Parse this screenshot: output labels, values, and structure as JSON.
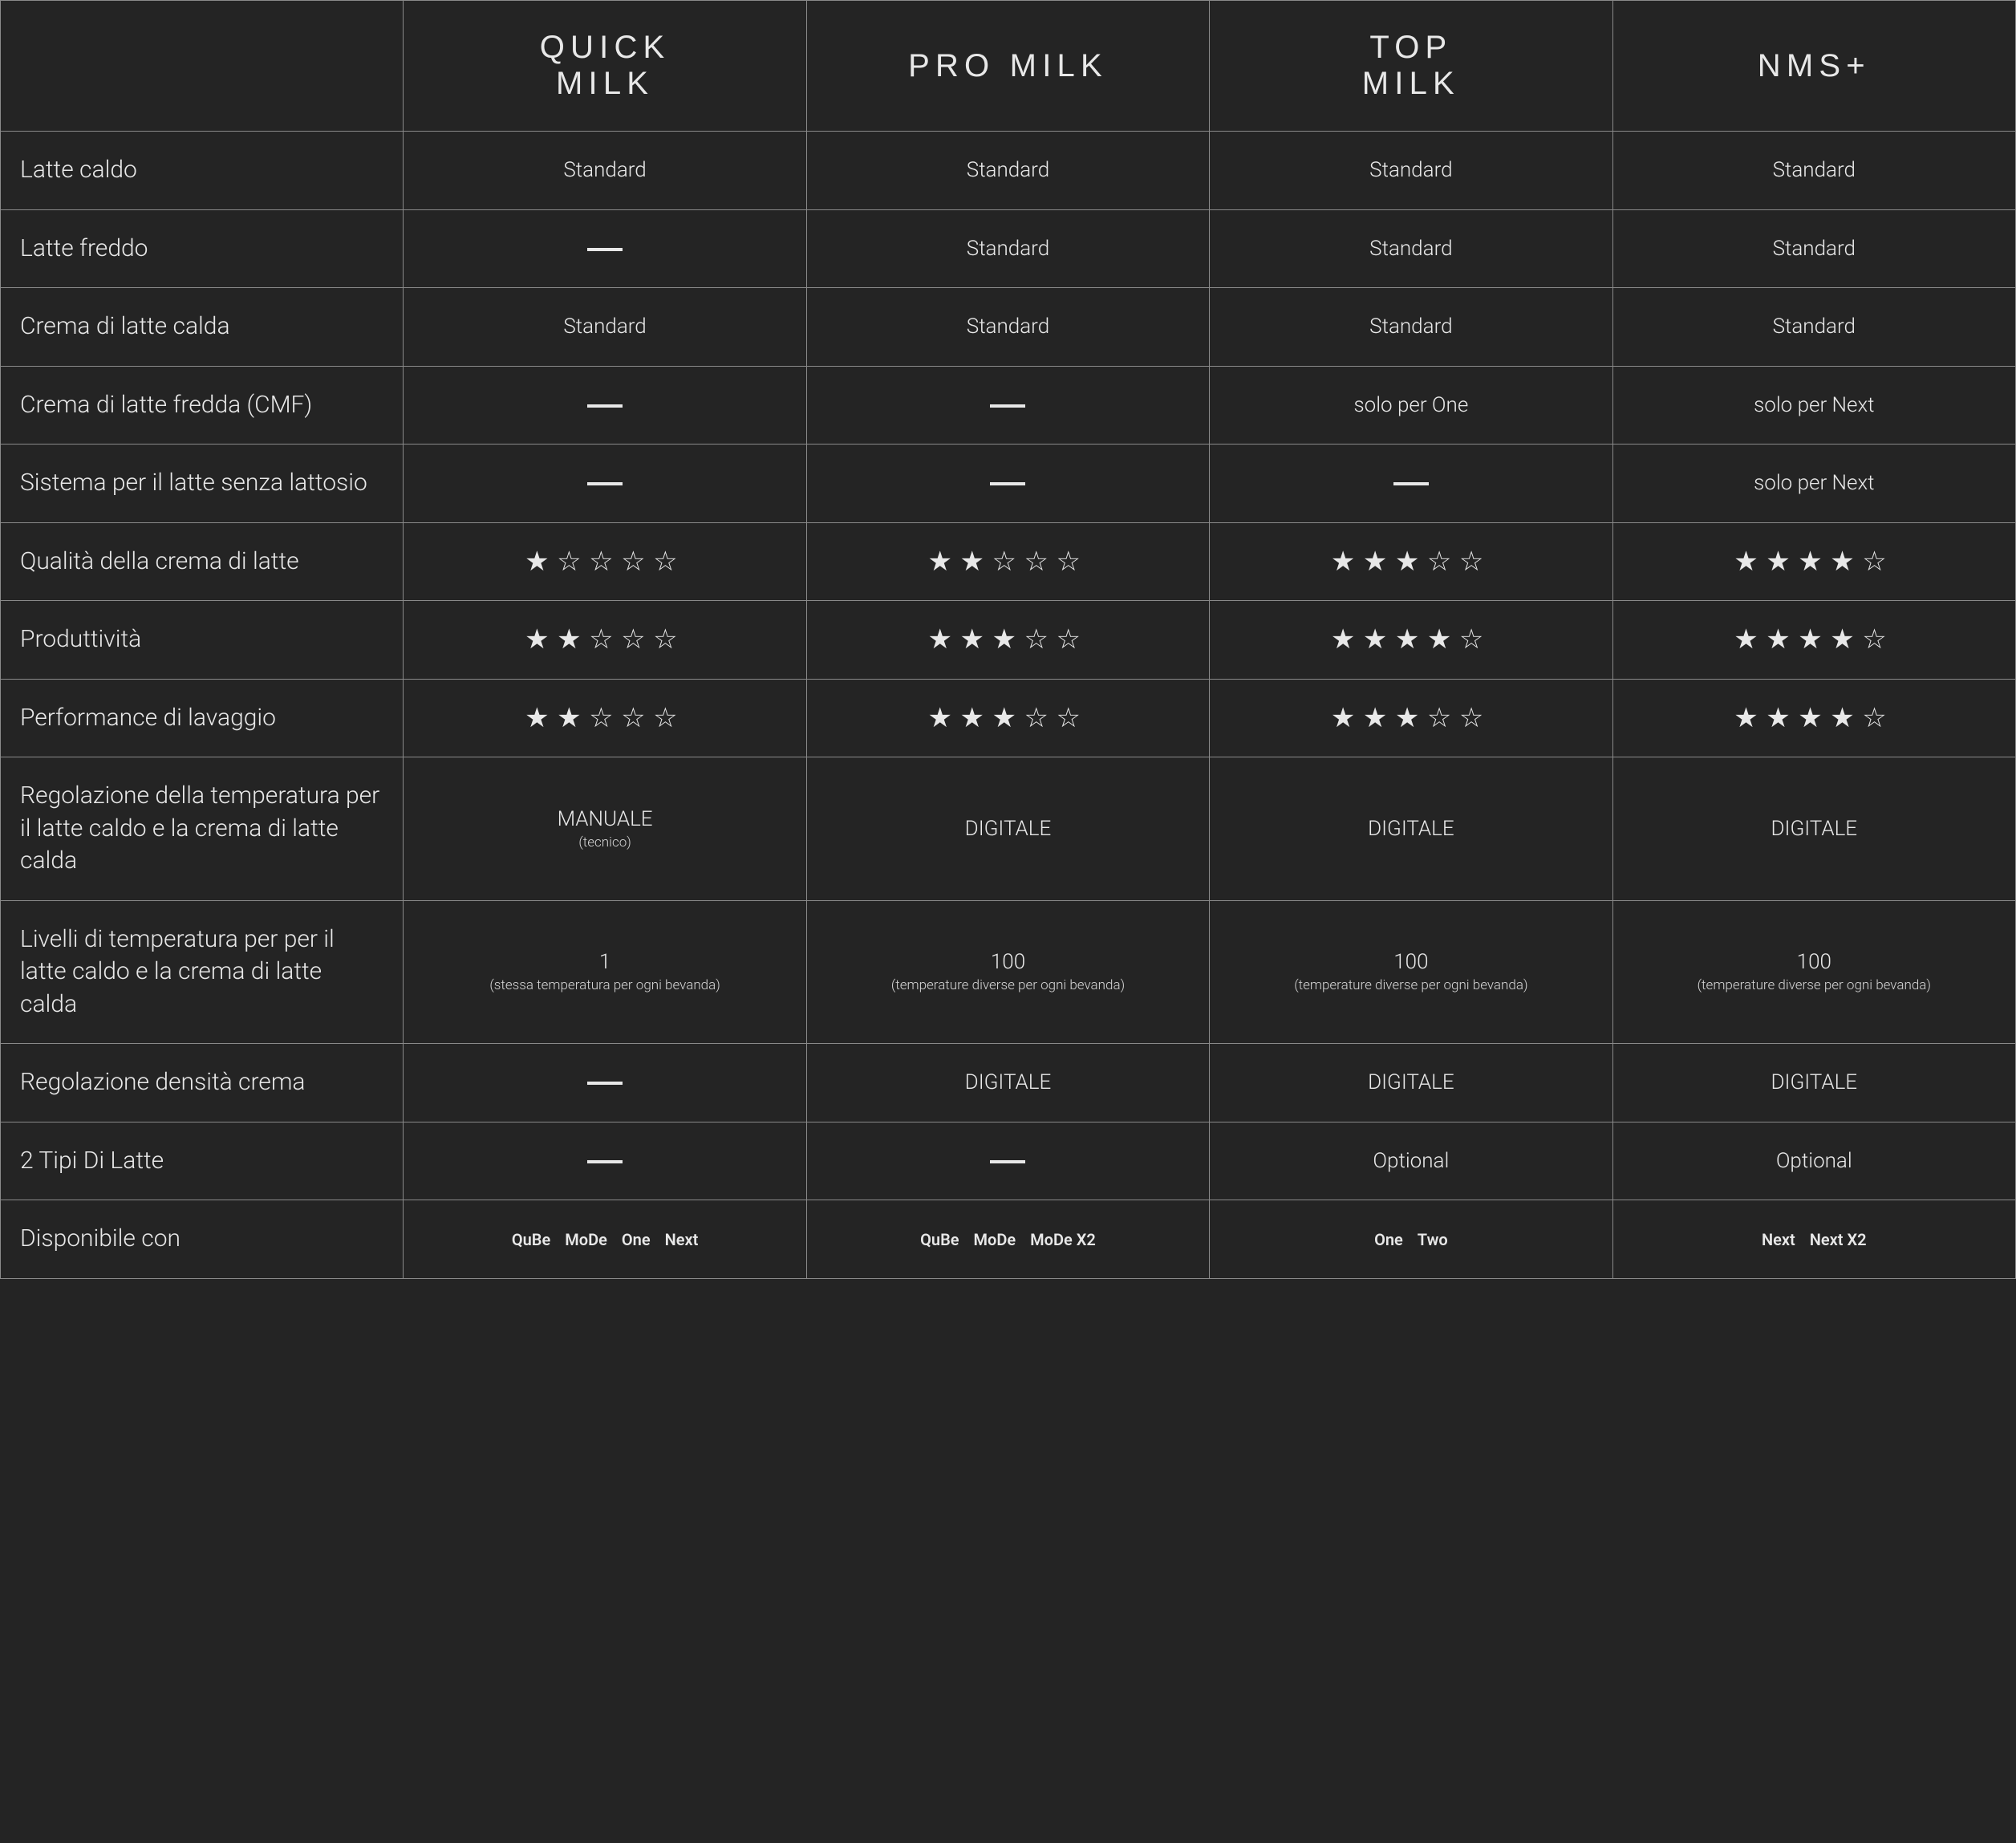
{
  "colors": {
    "background": "#242424",
    "text": "#e8e8e8",
    "border": "#8a8a8a"
  },
  "columns": [
    {
      "id": "quick",
      "line1": "QUICK",
      "line2": "MILK"
    },
    {
      "id": "pro",
      "line1": "PRO MILK",
      "line2": ""
    },
    {
      "id": "top",
      "line1": "TOP",
      "line2": "MILK"
    },
    {
      "id": "nms",
      "line1": "NMS+",
      "line2": ""
    }
  ],
  "rows": [
    {
      "label": "Latte caldo",
      "cells": [
        {
          "type": "text",
          "value": "Standard"
        },
        {
          "type": "text",
          "value": "Standard"
        },
        {
          "type": "text",
          "value": "Standard"
        },
        {
          "type": "text",
          "value": "Standard"
        }
      ]
    },
    {
      "label": "Latte freddo",
      "cells": [
        {
          "type": "dash"
        },
        {
          "type": "text",
          "value": "Standard"
        },
        {
          "type": "text",
          "value": "Standard"
        },
        {
          "type": "text",
          "value": "Standard"
        }
      ]
    },
    {
      "label": "Crema di latte calda",
      "cells": [
        {
          "type": "text",
          "value": "Standard"
        },
        {
          "type": "text",
          "value": "Standard"
        },
        {
          "type": "text",
          "value": "Standard"
        },
        {
          "type": "text",
          "value": "Standard"
        }
      ]
    },
    {
      "label": "Crema di latte fredda (CMF)",
      "cells": [
        {
          "type": "dash"
        },
        {
          "type": "dash"
        },
        {
          "type": "text",
          "value": "solo per One"
        },
        {
          "type": "text",
          "value": "solo per Next"
        }
      ]
    },
    {
      "label": "Sistema per il latte senza lattosio",
      "cells": [
        {
          "type": "dash"
        },
        {
          "type": "dash"
        },
        {
          "type": "dash"
        },
        {
          "type": "text",
          "value": "solo per Next"
        }
      ]
    },
    {
      "label": "Qualità della crema di latte",
      "cells": [
        {
          "type": "stars",
          "value": 1,
          "max": 5
        },
        {
          "type": "stars",
          "value": 2,
          "max": 5
        },
        {
          "type": "stars",
          "value": 3,
          "max": 5
        },
        {
          "type": "stars",
          "value": 4,
          "max": 5
        }
      ]
    },
    {
      "label": "Produttività",
      "cells": [
        {
          "type": "stars",
          "value": 2,
          "max": 5
        },
        {
          "type": "stars",
          "value": 3,
          "max": 5
        },
        {
          "type": "stars",
          "value": 4,
          "max": 5
        },
        {
          "type": "stars",
          "value": 4,
          "max": 5
        }
      ]
    },
    {
      "label": "Performance di lavaggio",
      "cells": [
        {
          "type": "stars",
          "value": 2,
          "max": 5
        },
        {
          "type": "stars",
          "value": 3,
          "max": 5
        },
        {
          "type": "stars",
          "value": 3,
          "max": 5
        },
        {
          "type": "stars",
          "value": 4,
          "max": 5
        }
      ]
    },
    {
      "label": "Regolazione della temperatura per il latte caldo e la crema di latte calda",
      "cells": [
        {
          "type": "text-sub",
          "value": "MANUALE",
          "sub": "(tecnico)"
        },
        {
          "type": "text",
          "value": "DIGITALE"
        },
        {
          "type": "text",
          "value": "DIGITALE"
        },
        {
          "type": "text",
          "value": "DIGITALE"
        }
      ]
    },
    {
      "label": "Livelli di temperatura per per il latte caldo e la crema di latte calda",
      "cells": [
        {
          "type": "text-sub",
          "value": "1",
          "sub": "(stessa temperatura per ogni bevanda)"
        },
        {
          "type": "text-sub",
          "value": "100",
          "sub": "(temperature diverse per ogni bevanda)"
        },
        {
          "type": "text-sub",
          "value": "100",
          "sub": "(temperature diverse per ogni bevanda)"
        },
        {
          "type": "text-sub",
          "value": "100",
          "sub": "(temperature diverse per ogni bevanda)"
        }
      ]
    },
    {
      "label": "Regolazione densità crema",
      "cells": [
        {
          "type": "dash"
        },
        {
          "type": "text",
          "value": "DIGITALE"
        },
        {
          "type": "text",
          "value": "DIGITALE"
        },
        {
          "type": "text",
          "value": "DIGITALE"
        }
      ]
    },
    {
      "label": "2 Tipi Di Latte",
      "cells": [
        {
          "type": "dash"
        },
        {
          "type": "dash"
        },
        {
          "type": "text",
          "value": "Optional"
        },
        {
          "type": "text",
          "value": "Optional"
        }
      ]
    },
    {
      "label": "Disponibile con",
      "cells": [
        {
          "type": "list",
          "items": [
            "QuBe",
            "MoDe",
            "One",
            "Next"
          ]
        },
        {
          "type": "list",
          "items": [
            "QuBe",
            "MoDe",
            "MoDe X2"
          ]
        },
        {
          "type": "list",
          "items": [
            "One",
            "Two"
          ]
        },
        {
          "type": "list",
          "items": [
            "Next",
            "Next X2"
          ]
        }
      ]
    }
  ],
  "star_glyphs": {
    "filled": "★",
    "empty": "☆"
  }
}
